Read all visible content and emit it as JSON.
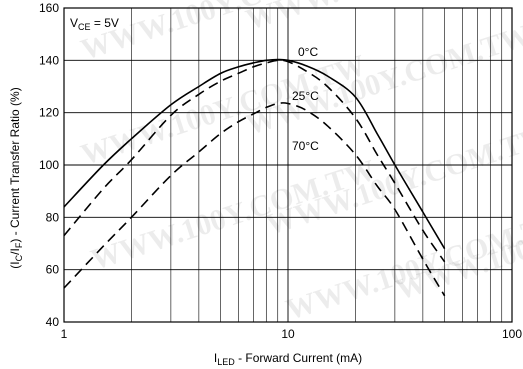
{
  "chart_data": {
    "type": "line",
    "xscale": "log",
    "xlim": [
      1,
      100
    ],
    "ylim": [
      40,
      160
    ],
    "xticks": [
      1,
      10,
      100
    ],
    "xtick_labels": [
      "1",
      "10",
      "100"
    ],
    "yticks": [
      40,
      60,
      80,
      100,
      120,
      140,
      160
    ],
    "ytick_labels": [
      "40",
      "60",
      "80",
      "100",
      "120",
      "140",
      "160"
    ],
    "grid": true,
    "xlabel": {
      "main": "I",
      "sub": "LED",
      "rest": " - Forward Current (mA)"
    },
    "ylabel": {
      "p1": "(I",
      "s1": "C",
      "p2": "/I",
      "s2": "F",
      "p3": ") - Current Transfer Ratio (%)"
    },
    "annotation": {
      "main": "V",
      "sub": "CE",
      "rest": " = 5V"
    },
    "watermark": "WWW.100Y.COM.TW",
    "series": [
      {
        "name": "0°C",
        "style": "solid",
        "x": [
          1,
          1.5,
          2,
          3,
          4,
          5,
          6,
          7,
          8,
          9,
          10,
          12,
          15,
          20,
          25,
          30,
          40,
          50
        ],
        "y": [
          84,
          100,
          110,
          123,
          130,
          135,
          137.5,
          139,
          140,
          140.3,
          140,
          138,
          134,
          126,
          112,
          100,
          82,
          68
        ]
      },
      {
        "name": "25°C",
        "style": "dashed",
        "x": [
          1,
          1.5,
          2,
          3,
          4,
          5,
          6,
          7,
          8,
          9,
          10,
          12,
          15,
          20,
          25,
          30,
          40,
          50
        ],
        "y": [
          73,
          91,
          102,
          119,
          127,
          132,
          135,
          137.5,
          139,
          140,
          139.5,
          136,
          130,
          118,
          104,
          93,
          75,
          63
        ]
      },
      {
        "name": "70°C",
        "style": "dashed",
        "x": [
          1,
          1.5,
          2,
          3,
          4,
          5,
          6,
          7,
          8,
          9,
          10,
          12,
          15,
          20,
          25,
          30,
          40,
          50
        ],
        "y": [
          53,
          69,
          80,
          96,
          105,
          112,
          116.5,
          119.5,
          122,
          123.5,
          123.5,
          121,
          115,
          104,
          92,
          83,
          64,
          50
        ]
      }
    ],
    "series_label_positions": [
      "0°C",
      "25°C",
      "70°C"
    ]
  }
}
